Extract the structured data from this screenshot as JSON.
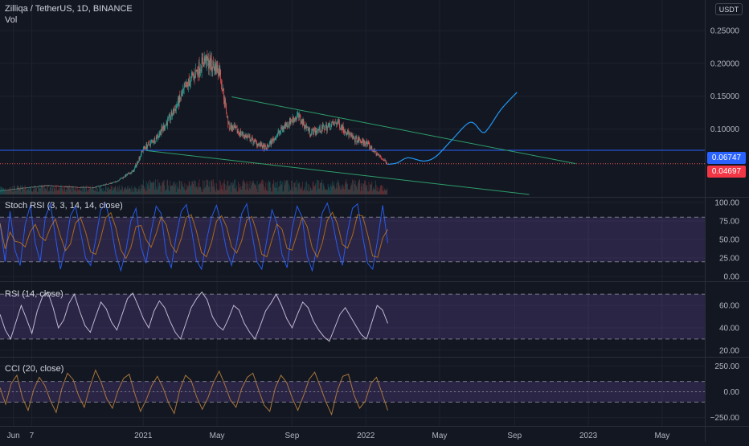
{
  "header": {
    "symbol_line": "Zilliqa / TetherUS, 1D, BINANCE",
    "volume_label": "Vol",
    "currency_button": "USDT"
  },
  "badges": {
    "resistance_price": "0.06747",
    "last_price": "0.04697",
    "resistance_color": "#2962ff",
    "last_price_color": "#f23645"
  },
  "panels": {
    "stoch_rsi_label": "Stoch RSI (3, 3, 14, 14, close)",
    "rsi_label": "RSI (14, close)",
    "cci_label": "CCI (20, close)"
  },
  "x_axis": {
    "labels": [
      "Jun",
      "7",
      "2021",
      "May",
      "Sep",
      "2022",
      "May",
      "Sep",
      "2023",
      "May"
    ]
  },
  "colors": {
    "background": "#131722",
    "up_candle": "#26a69a",
    "down_candle": "#ef5350",
    "trendline": "#2e9e6a",
    "projection": "#2196f3",
    "stoch_k": "#2962ff",
    "stoch_d": "#ff9800",
    "oscillator_band": "#7e57c2",
    "rsi_line": "#c9c1d8",
    "cci_line": "#b07b3c"
  },
  "chart_data": [
    {
      "type": "candlestick",
      "title": "Zilliqa / TetherUS, 1D, BINANCE",
      "y_unit": "USDT",
      "y_ticks": [
        "0.25000",
        "0.20000",
        "0.15000",
        "0.10000"
      ],
      "y_tick_values": [
        0.25,
        0.2,
        0.15,
        0.1
      ],
      "ylim": [
        0.0,
        0.26
      ],
      "x_range": [
        "2020-05-10",
        "2023-07-10"
      ],
      "horizontal_lines": [
        {
          "value": 0.06747,
          "label": "0.06747"
        }
      ],
      "last_price": 0.04697,
      "price_path": [
        {
          "date": "2020-05-10",
          "close": 0.0055
        },
        {
          "date": "2020-06-15",
          "close": 0.0095
        },
        {
          "date": "2020-07-25",
          "close": 0.0135
        },
        {
          "date": "2020-09-01",
          "close": 0.0115
        },
        {
          "date": "2020-10-10",
          "close": 0.0105
        },
        {
          "date": "2020-11-15",
          "close": 0.019
        },
        {
          "date": "2020-12-15",
          "close": 0.036
        },
        {
          "date": "2020-12-31",
          "close": 0.07
        },
        {
          "date": "2021-01-20",
          "close": 0.085
        },
        {
          "date": "2021-02-15",
          "close": 0.12
        },
        {
          "date": "2021-03-15",
          "close": 0.17
        },
        {
          "date": "2021-04-10",
          "close": 0.205
        },
        {
          "date": "2021-05-05",
          "close": 0.19
        },
        {
          "date": "2021-05-20",
          "close": 0.105
        },
        {
          "date": "2021-06-15",
          "close": 0.09
        },
        {
          "date": "2021-07-20",
          "close": 0.07
        },
        {
          "date": "2021-08-20",
          "close": 0.105
        },
        {
          "date": "2021-09-10",
          "close": 0.12
        },
        {
          "date": "2021-10-01",
          "close": 0.095
        },
        {
          "date": "2021-10-20",
          "close": 0.1
        },
        {
          "date": "2021-11-15",
          "close": 0.11
        },
        {
          "date": "2021-12-10",
          "close": 0.085
        },
        {
          "date": "2022-01-01",
          "close": 0.078
        },
        {
          "date": "2022-01-20",
          "close": 0.06
        },
        {
          "date": "2022-02-05",
          "close": 0.047
        }
      ],
      "trendlines": [
        {
          "from": {
            "date": "2021-05-25",
            "value": 0.149
          },
          "to": {
            "date": "2022-12-10",
            "value": 0.047
          }
        },
        {
          "from": {
            "date": "2021-01-05",
            "value": 0.067
          },
          "to": {
            "date": "2022-09-25",
            "value": 0.0
          }
        }
      ],
      "projection_path": [
        {
          "date": "2022-02-05",
          "value": 0.046
        },
        {
          "date": "2022-02-20",
          "value": 0.048
        },
        {
          "date": "2022-03-10",
          "value": 0.056
        },
        {
          "date": "2022-04-05",
          "value": 0.051
        },
        {
          "date": "2022-04-25",
          "value": 0.058
        },
        {
          "date": "2022-05-20",
          "value": 0.082
        },
        {
          "date": "2022-06-20",
          "value": 0.11
        },
        {
          "date": "2022-07-10",
          "value": 0.095
        },
        {
          "date": "2022-07-20",
          "value": 0.101
        },
        {
          "date": "2022-08-10",
          "value": 0.13
        },
        {
          "date": "2022-09-05",
          "value": 0.156
        }
      ]
    },
    {
      "type": "line",
      "title": "Stoch RSI (3, 3, 14, 14, close)",
      "y_ticks": [
        "100.00",
        "75.00",
        "50.00",
        "25.00",
        "0.00"
      ],
      "y_tick_values": [
        100,
        75,
        50,
        25,
        0
      ],
      "ylim": [
        -2,
        102
      ],
      "band": [
        20,
        80
      ],
      "series": [
        {
          "values": [
            72,
            20,
            88,
            35,
            15,
            70,
            96,
            45,
            20,
            80,
            98,
            55,
            10,
            40,
            82,
            95,
            60,
            25,
            15,
            50,
            90,
            98,
            70,
            30,
            8,
            35,
            75,
            92,
            40,
            18,
            60,
            95,
            85,
            30,
            12,
            55,
            88,
            97,
            65,
            22,
            10,
            48,
            80,
            96,
            70,
            35,
            15,
            45,
            85,
            98,
            60,
            20,
            10,
            50,
            90,
            72,
            30,
            12,
            65,
            95,
            80,
            28,
            8,
            42,
            86,
            99,
            75,
            40,
            15,
            60,
            92,
            98,
            55,
            18,
            10,
            50,
            96,
            45
          ]
        }
      ]
    },
    {
      "type": "line",
      "title": "RSI (14, close)",
      "y_ticks": [
        "60.00",
        "40.00",
        "20.00"
      ],
      "y_tick_values": [
        60,
        40,
        20
      ],
      "ylim": [
        17,
        78
      ],
      "band": [
        30,
        70
      ],
      "series": [
        {
          "values": [
            52,
            38,
            30,
            45,
            60,
            48,
            35,
            55,
            68,
            72,
            58,
            40,
            47,
            62,
            70,
            55,
            42,
            36,
            50,
            63,
            57,
            45,
            38,
            52,
            66,
            71,
            60,
            48,
            40,
            55,
            64,
            58,
            46,
            36,
            30,
            44,
            58,
            66,
            72,
            65,
            50,
            42,
            38,
            48,
            60,
            56,
            44,
            36,
            30,
            42,
            55,
            62,
            70,
            60,
            48,
            40,
            52,
            63,
            58,
            46,
            38,
            32,
            28,
            40,
            52,
            58,
            50,
            42,
            34,
            30,
            45,
            60,
            56,
            44
          ]
        }
      ]
    },
    {
      "type": "line",
      "title": "CCI (20, close)",
      "y_ticks": [
        "250.00",
        "0.00",
        "−250.00"
      ],
      "y_tick_values": [
        250,
        0,
        -250
      ],
      "ylim": [
        -300,
        300
      ],
      "band": [
        -100,
        100
      ],
      "series": [
        {
          "values": [
            40,
            -120,
            80,
            160,
            -60,
            -180,
            20,
            140,
            60,
            -90,
            -200,
            30,
            180,
            120,
            -40,
            -150,
            50,
            210,
            90,
            -70,
            -160,
            10,
            130,
            170,
            -20,
            -190,
            -80,
            60,
            150,
            40,
            -110,
            -210,
            20,
            160,
            110,
            -50,
            -170,
            -60,
            90,
            200,
            70,
            -80,
            -150,
            30,
            140,
            180,
            20,
            -130,
            -190,
            40,
            160,
            90,
            -60,
            -180,
            -40,
            120,
            190,
            50,
            -100,
            -220,
            10,
            150,
            170,
            -30,
            -160,
            -90,
            80,
            140,
            -20,
            -180
          ]
        }
      ]
    }
  ]
}
